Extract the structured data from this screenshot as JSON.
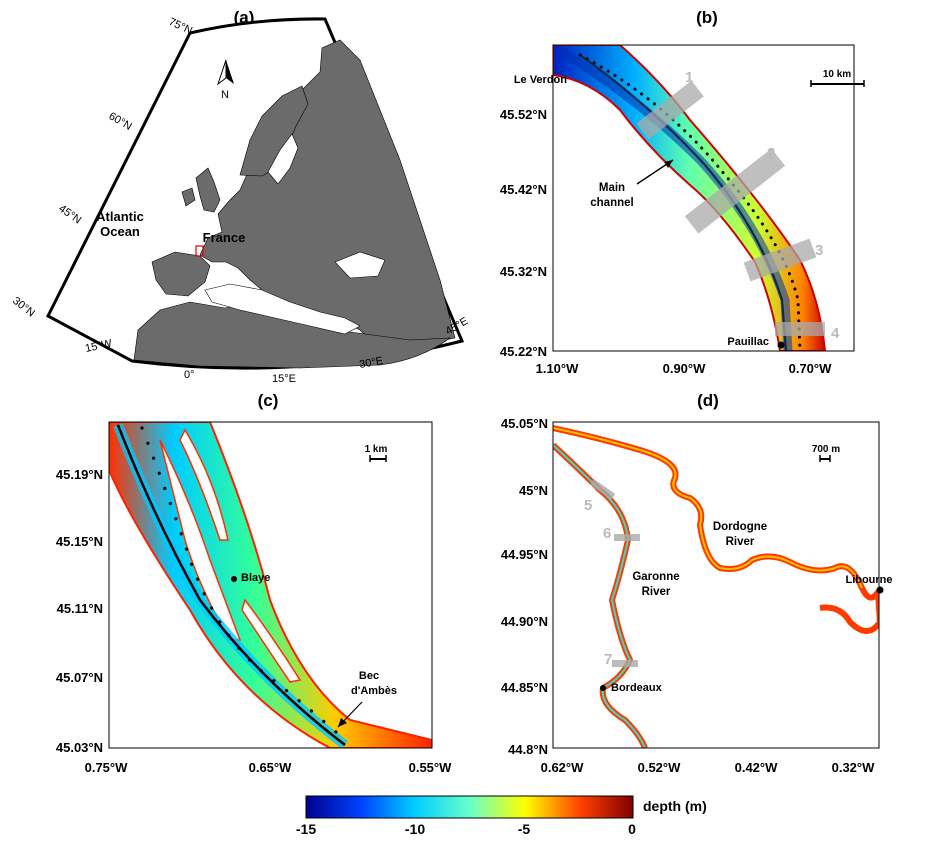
{
  "panels": {
    "a": {
      "label": "(a)",
      "lat_labels": [
        "75°N",
        "60°N",
        "45°N",
        "30°N"
      ],
      "lon_labels": [
        "15°W",
        "0°",
        "15°E",
        "30°E",
        "45°E"
      ],
      "north": "N",
      "places": [
        "Atlantic Ocean",
        "France"
      ],
      "place_ocean_l1": "Atlantic",
      "place_ocean_l2": "Ocean"
    },
    "b": {
      "label": "(b)",
      "y_ticks": [
        "45.52°N",
        "45.42°N",
        "45.32°N",
        "45.22°N"
      ],
      "x_ticks": [
        "1.10°W",
        "0.90°W",
        "0.70°W"
      ],
      "scale": "10 km",
      "places": [
        "Le Verdon",
        "Pauillac"
      ],
      "annot_l1": "Main",
      "annot_l2": "channel",
      "sections": [
        "1",
        "2",
        "3",
        "4"
      ]
    },
    "c": {
      "label": "(c)",
      "y_ticks": [
        "45.19°N",
        "45.15°N",
        "45.11°N",
        "45.07°N",
        "45.03°N"
      ],
      "x_ticks": [
        "0.75°W",
        "0.65°W",
        "0.55°W"
      ],
      "scale": "1 km",
      "places": [
        "Blaye"
      ],
      "bec_l1": "Bec",
      "bec_l2": "d'Ambès"
    },
    "d": {
      "label": "(d)",
      "y_ticks": [
        "45.05°N",
        "45°N",
        "44.95°N",
        "44.90°N",
        "44.85°N",
        "44.8°N"
      ],
      "x_ticks": [
        "0.62°W",
        "0.52°W",
        "0.42°W",
        "0.32°W"
      ],
      "scale": "700 m",
      "places": [
        "Bordeaux",
        "Libourne"
      ],
      "dordogne_l1": "Dordogne",
      "dordogne_l2": "River",
      "garonne_l1": "Garonne",
      "garonne_l2": "River",
      "sections": [
        "5",
        "6",
        "7"
      ]
    }
  },
  "colorbar": {
    "label": "depth (m)",
    "ticks": [
      "-15",
      "-10",
      "-5",
      "0"
    ],
    "stops": [
      "#00008f",
      "#0066ff",
      "#00ffff",
      "#ffff00",
      "#ff4000",
      "#800000"
    ]
  }
}
